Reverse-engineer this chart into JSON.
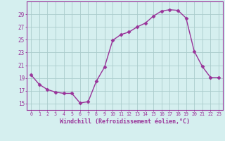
{
  "hours": [
    0,
    1,
    2,
    3,
    4,
    5,
    6,
    7,
    8,
    9,
    10,
    11,
    12,
    13,
    14,
    15,
    16,
    17,
    18,
    19,
    20,
    21,
    22,
    23
  ],
  "windchill": [
    19.5,
    18.0,
    17.2,
    16.8,
    16.6,
    16.6,
    15.1,
    15.3,
    18.5,
    20.7,
    24.9,
    25.8,
    26.2,
    27.0,
    27.6,
    28.7,
    29.5,
    29.7,
    29.6,
    28.4,
    23.2,
    20.8,
    19.1,
    19.1
  ],
  "line_color": "#993399",
  "marker_color": "#993399",
  "bg_color": "#d5efef",
  "grid_color": "#aacccc",
  "axis_color": "#993399",
  "tick_color": "#993399",
  "xlabel": "Windchill (Refroidissement éolien,°C)",
  "ylim": [
    14,
    31
  ],
  "yticks": [
    15,
    17,
    19,
    21,
    23,
    25,
    27,
    29
  ],
  "font_color": "#993399"
}
